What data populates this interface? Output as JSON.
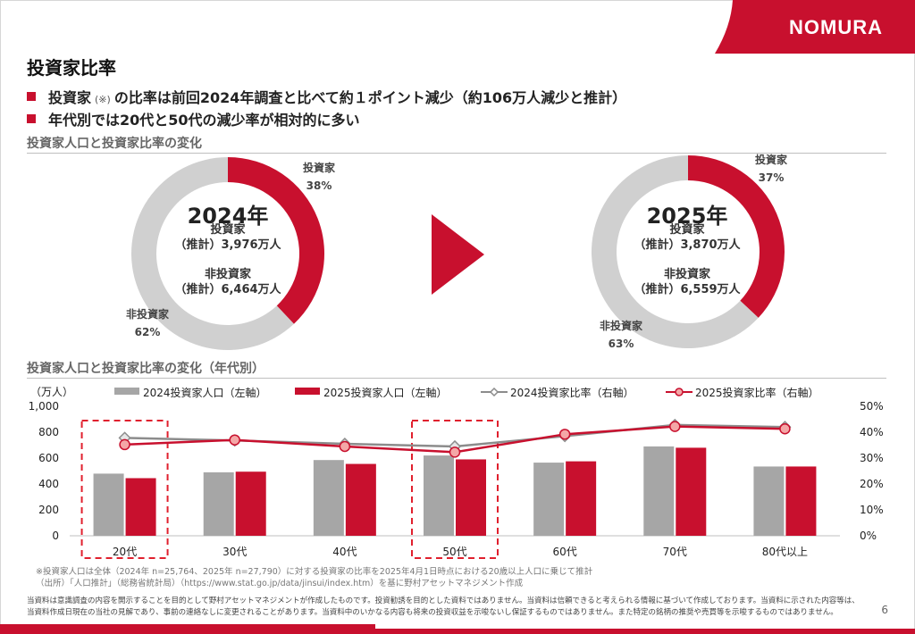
{
  "brand": {
    "logo": "NOMURA",
    "color": "#c8102e"
  },
  "title": "投資家比率",
  "bullets": [
    {
      "pre": "投資家",
      "note": "(※)",
      "post": "の比率は前回2024年調査と比べて約１ポイント減少（約106万人減少と推計）"
    },
    {
      "text": "年代別では20代と50代の減少率が相対的に多い"
    }
  ],
  "section1_title": "投資家人口と投資家比率の変化",
  "section2_title": "投資家人口と投資家比率の変化（年代別）",
  "donuts": [
    {
      "year": "2024年",
      "investor_label": "投資家",
      "investor_pct": 38,
      "investor_pct_label": "38%",
      "non_label": "非投資家",
      "non_pct_label": "62%",
      "center_inv_1": "投資家",
      "center_inv_2": "（推計）3,976万人",
      "center_non_1": "非投資家",
      "center_non_2": "（推計）6,464万人"
    },
    {
      "year": "2025年",
      "investor_label": "投資家",
      "investor_pct": 37,
      "investor_pct_label": "37%",
      "non_label": "非投資家",
      "non_pct_label": "63%",
      "center_inv_1": "投資家",
      "center_inv_2": "（推計）3,870万人",
      "center_non_1": "非投資家",
      "center_non_2": "（推計）6,559万人"
    }
  ],
  "chart_data": {
    "type": "bar",
    "categories": [
      "20代",
      "30代",
      "40代",
      "50代",
      "60代",
      "70代",
      "80代以上"
    ],
    "highlight_categories": [
      "20代",
      "50代"
    ],
    "y_left_unit": "（万人）",
    "y_left_ticks": [
      "0",
      "200",
      "400",
      "600",
      "800",
      "1,000"
    ],
    "y_left_lim": [
      0,
      1000
    ],
    "y_right_ticks": [
      "0%",
      "10%",
      "20%",
      "30%",
      "40%",
      "50%"
    ],
    "y_right_lim": [
      0,
      50
    ],
    "series": [
      {
        "name": "2024投資家人口（左軸）",
        "type": "bar",
        "axis": "left",
        "color": "#a6a6a6",
        "values": [
          480,
          490,
          585,
          620,
          565,
          690,
          535
        ]
      },
      {
        "name": "2025投資家人口（左軸）",
        "type": "bar",
        "axis": "left",
        "color": "#c8102e",
        "values": [
          445,
          495,
          555,
          590,
          575,
          680,
          535
        ]
      },
      {
        "name": "2024投資家比率（右軸）",
        "type": "line",
        "axis": "right",
        "color": "#8c8c8c",
        "values": [
          37.8,
          36.8,
          35.5,
          34.5,
          38.5,
          42.8,
          42.0
        ]
      },
      {
        "name": "2025投資家比率（右軸）",
        "type": "line",
        "axis": "right",
        "color": "#c8102e",
        "values": [
          35.2,
          37.0,
          34.5,
          32.3,
          39.2,
          42.2,
          41.3
        ]
      }
    ]
  },
  "footnotes": [
    "※投資家人口は全体（2024年 n=25,764、2025年 n=27,790）に対する投資家の比率を2025年4月1日時点における20歳以上人口に乗じて推計",
    "（出所）「人口推計」（総務省統計局）（https://www.stat.go.jp/data/jinsui/index.htm）を基に野村アセットマネジメント作成"
  ],
  "disclaimer": "当資料は意識調査の内容を開示することを目的として野村アセットマネジメントが作成したものです。投資勧誘を目的とした資料ではありません。当資料は信頼できると考えられる情報に基づいて作成しております。当資料に示された内容等は、当資料作成日現在の当社の見解であり、事前の連絡なしに変更されることがあります。当資料中のいかなる内容も将来の投資収益を示唆ないし保証するものではありません。また特定の銘柄の推奨や売買等を示唆するものではありません。",
  "page_number": "6"
}
